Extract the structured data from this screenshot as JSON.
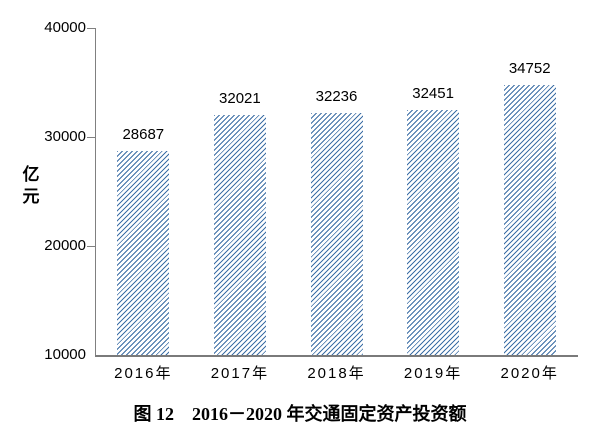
{
  "chart_data": {
    "type": "bar",
    "categories": [
      "2016年",
      "2017年",
      "2018年",
      "2019年",
      "2020年"
    ],
    "values": [
      28687,
      32021,
      32236,
      32451,
      34752
    ],
    "data_labels": [
      "28687",
      "32021",
      "32236",
      "32451",
      "34752"
    ],
    "title": "图 12　2016－2020 年交通固定资产投资额",
    "xlabel": "",
    "ylabel": "亿元",
    "ylim": [
      10000,
      40000
    ],
    "yticks": [
      10000,
      20000,
      30000,
      40000
    ],
    "grid": false,
    "legend_position": "none",
    "bar_style": {
      "fill": "hatch-diagonal-forward",
      "hatch_color": "#3d6fa6",
      "hatch_background": "#ffffff"
    },
    "axis_color": "#808080",
    "text_color": "#000000"
  }
}
